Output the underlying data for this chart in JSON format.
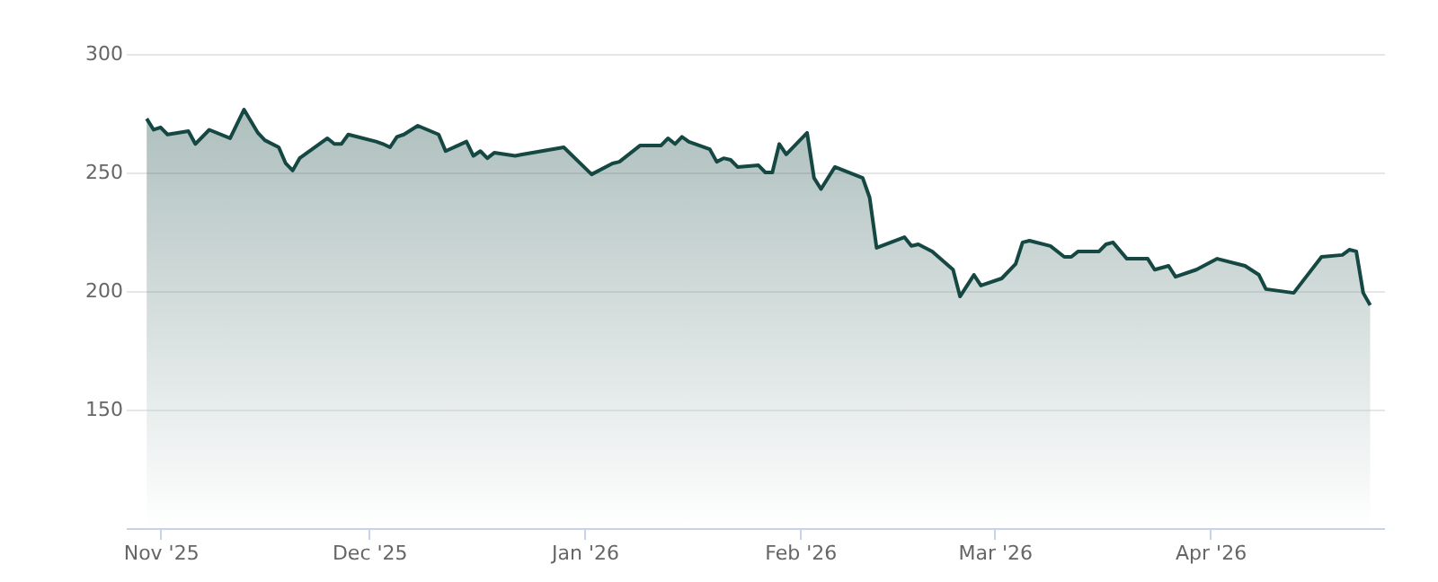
{
  "chart_data": {
    "type": "area",
    "xlim": [
      "2025-10-27",
      "2026-04-26"
    ],
    "ylim": [
      100,
      300
    ],
    "xticks": [
      {
        "value": "2025-11-01",
        "label": "Nov '25"
      },
      {
        "value": "2025-12-01",
        "label": "Dec '25"
      },
      {
        "value": "2026-01-01",
        "label": "Jan '26"
      },
      {
        "value": "2026-02-01",
        "label": "Feb '26"
      },
      {
        "value": "2026-03-01",
        "label": "Mar '26"
      },
      {
        "value": "2026-04-01",
        "label": "Apr '26"
      }
    ],
    "yticks": [
      150,
      200,
      250,
      300
    ],
    "grid": "y",
    "x": [
      "2025-10-30",
      "2025-10-31",
      "2025-11-01",
      "2025-11-02",
      "2025-11-05",
      "2025-11-06",
      "2025-11-08",
      "2025-11-11",
      "2025-11-13",
      "2025-11-15",
      "2025-11-16",
      "2025-11-18",
      "2025-11-19",
      "2025-11-20",
      "2025-11-21",
      "2025-11-25",
      "2025-11-26",
      "2025-11-27",
      "2025-11-28",
      "2025-12-02",
      "2025-12-03",
      "2025-12-04",
      "2025-12-05",
      "2025-12-06",
      "2025-12-08",
      "2025-12-11",
      "2025-12-12",
      "2025-12-15",
      "2025-12-16",
      "2025-12-17",
      "2025-12-18",
      "2025-12-19",
      "2025-12-22",
      "2025-12-23",
      "2025-12-29",
      "2026-01-02",
      "2026-01-05",
      "2026-01-06",
      "2026-01-09",
      "2026-01-12",
      "2026-01-13",
      "2026-01-14",
      "2026-01-15",
      "2026-01-16",
      "2026-01-19",
      "2026-01-20",
      "2026-01-21",
      "2026-01-22",
      "2026-01-23",
      "2026-01-26",
      "2026-01-27",
      "2026-01-28",
      "2026-01-29",
      "2026-01-30",
      "2026-02-02",
      "2026-02-03",
      "2026-02-04",
      "2026-02-06",
      "2026-02-10",
      "2026-02-11",
      "2026-02-12",
      "2026-02-16",
      "2026-02-17",
      "2026-02-18",
      "2026-02-20",
      "2026-02-23",
      "2026-02-24",
      "2026-02-26",
      "2026-02-27",
      "2026-03-02",
      "2026-03-04",
      "2026-03-05",
      "2026-03-06",
      "2026-03-09",
      "2026-03-11",
      "2026-03-12",
      "2026-03-13",
      "2026-03-16",
      "2026-03-17",
      "2026-03-18",
      "2026-03-20",
      "2026-03-23",
      "2026-03-24",
      "2026-03-26",
      "2026-03-27",
      "2026-03-30",
      "2026-04-02",
      "2026-04-06",
      "2026-04-08",
      "2026-04-09",
      "2026-04-13",
      "2026-04-17",
      "2026-04-20",
      "2026-04-21",
      "2026-04-22",
      "2026-04-23",
      "2026-04-24"
    ],
    "series": [
      {
        "color": "#164843",
        "values": [
          272.7,
          268,
          269,
          266,
          267.4,
          262,
          268,
          264.4,
          276.5,
          266.7,
          263.6,
          260.6,
          253.8,
          250.8,
          256,
          264.4,
          262,
          262,
          266,
          263,
          262,
          260.6,
          265,
          266,
          269.7,
          266,
          259,
          263,
          257,
          259,
          256,
          258.3,
          257,
          257.6,
          260.6,
          249.2,
          253.8,
          254.5,
          261.4,
          261.4,
          264.4,
          262,
          265,
          262.9,
          259.8,
          254.5,
          256,
          255.3,
          252.3,
          253,
          250,
          250,
          262,
          257.6,
          266.7,
          247.7,
          243,
          252.3,
          247.7,
          239.4,
          218.2,
          222.7,
          219,
          219.7,
          216.7,
          209,
          197.7,
          206.8,
          202.3,
          205.3,
          211.4,
          220.5,
          221.2,
          219,
          214.4,
          214.4,
          216.7,
          216.7,
          219.7,
          220.5,
          213.6,
          213.6,
          209,
          210.6,
          206,
          209,
          213.6,
          210.6,
          206.8,
          200.8,
          199.2,
          214.4,
          215.2,
          217.4,
          216.7,
          199.2,
          194
        ]
      }
    ]
  }
}
